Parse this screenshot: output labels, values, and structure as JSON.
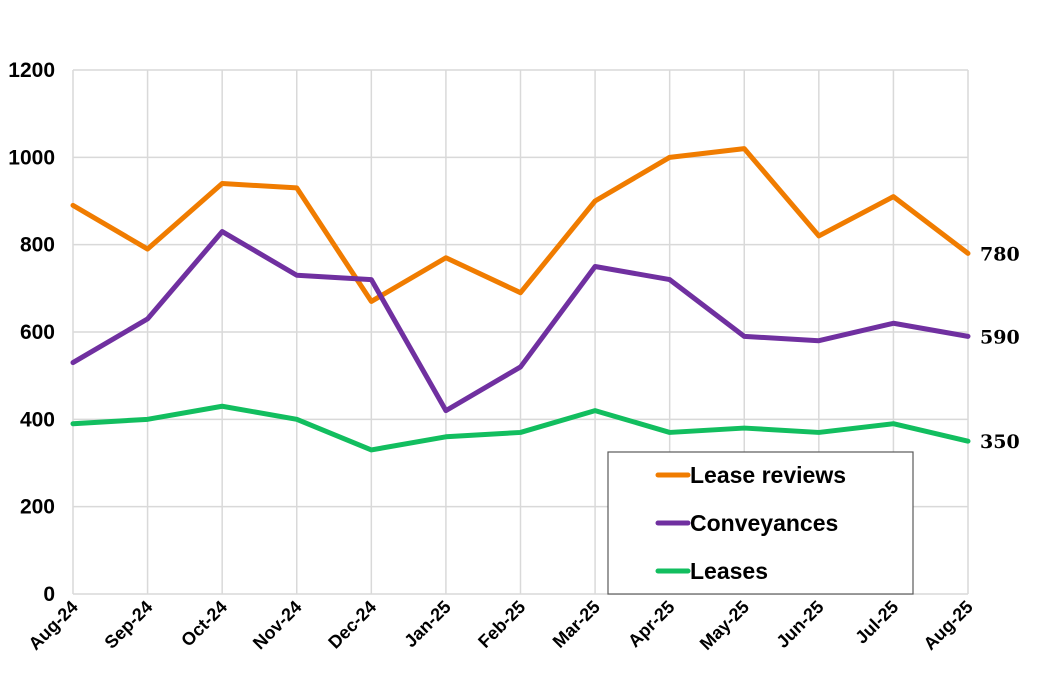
{
  "chart_data": {
    "type": "line",
    "categories": [
      "Aug-24",
      "Sep-24",
      "Oct-24",
      "Nov-24",
      "Dec-24",
      "Jan-25",
      "Feb-25",
      "Mar-25",
      "Apr-25",
      "May-25",
      "Jun-25",
      "Jul-25",
      "Aug-25"
    ],
    "series": [
      {
        "name": "Lease reviews",
        "color": "#F07C00",
        "values": [
          890,
          790,
          940,
          930,
          670,
          770,
          690,
          900,
          1000,
          1020,
          820,
          910,
          780
        ]
      },
      {
        "name": "Conveyances",
        "color": "#7030A0",
        "values": [
          530,
          630,
          830,
          730,
          720,
          420,
          520,
          750,
          720,
          590,
          580,
          620,
          590
        ]
      },
      {
        "name": "Leases",
        "color": "#12BE5F",
        "values": [
          390,
          400,
          430,
          400,
          330,
          360,
          370,
          420,
          370,
          380,
          370,
          390,
          350
        ]
      }
    ],
    "end_labels": [
      "780",
      "590",
      "350"
    ],
    "y_ticks": [
      "0",
      "200",
      "400",
      "600",
      "800",
      "1000",
      "1200"
    ],
    "ylim": [
      0,
      1200
    ],
    "title": "",
    "xlabel": "",
    "ylabel": "",
    "grid": true,
    "legend_position": "bottom-right"
  }
}
